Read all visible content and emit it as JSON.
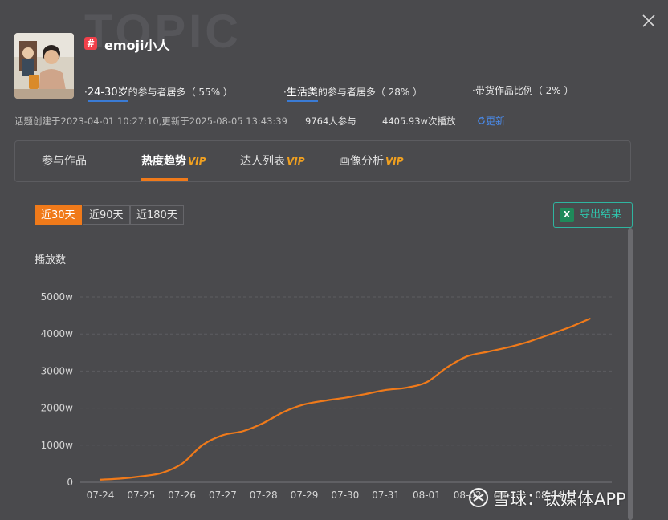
{
  "watermark": "TOPIC",
  "topic": {
    "name": "emoji小人"
  },
  "stats": {
    "age": {
      "value": "24-30岁",
      "suffix": "的参与者居多（ 55% ）"
    },
    "category": {
      "value": "生活类",
      "suffix": "的参与者居多（ 28% ）"
    },
    "goods": {
      "label": "带货作品比例（ 2% ）"
    }
  },
  "meta": {
    "created": "话题创建于2023-04-01 10:27:10,更新于2025-08-05 13:43:39",
    "participants": "9764人参与",
    "plays": "4405.93w次播放",
    "refresh": "更新"
  },
  "tabs": [
    {
      "label": "参与作品",
      "vip": ""
    },
    {
      "label": "热度趋势",
      "vip": "VIP"
    },
    {
      "label": "达人列表",
      "vip": "VIP"
    },
    {
      "label": "画像分析",
      "vip": "VIP"
    }
  ],
  "range_buttons": [
    "近30天",
    "近90天",
    "近180天"
  ],
  "export": {
    "label": "导出结果"
  },
  "bottom_watermark": "雪球：钛媒体APP",
  "chart_data": {
    "type": "line",
    "ylabel": "播放数",
    "y_ticks": [
      "0",
      "1000w",
      "2000w",
      "3000w",
      "4000w",
      "5000w"
    ],
    "ylim": [
      0,
      5000
    ],
    "x_ticks": [
      "07-24",
      "07-25",
      "07-26",
      "07-27",
      "07-28",
      "07-29",
      "07-30",
      "07-31",
      "08-01",
      "08-02",
      "08-03",
      "08-04"
    ],
    "color": "#f07a1a",
    "series": [
      {
        "name": "",
        "x": [
          0,
          0.5,
          1,
          1.5,
          2,
          2.5,
          3,
          3.5,
          4,
          4.5,
          5,
          5.5,
          6,
          6.5,
          7,
          7.5,
          8,
          8.5,
          9,
          9.5,
          10,
          10.5,
          11,
          11.5,
          12
        ],
        "values": [
          70,
          100,
          160,
          250,
          500,
          1000,
          1270,
          1380,
          1600,
          1900,
          2100,
          2200,
          2280,
          2380,
          2490,
          2550,
          2700,
          3100,
          3400,
          3520,
          3640,
          3790,
          3980,
          4180,
          4410
        ]
      }
    ]
  }
}
